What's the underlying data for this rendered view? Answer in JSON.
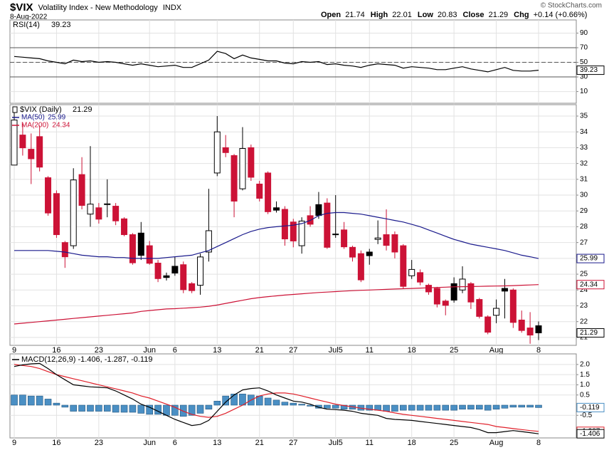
{
  "header": {
    "symbol": "$VIX",
    "name": "Volatility Index - New Methodology",
    "exchange": "INDX",
    "date": "8-Aug-2022",
    "open_label": "Open",
    "high_label": "High",
    "low_label": "Low",
    "close_label": "Close",
    "chg_label": "Chg",
    "chg": "+0.14 (+0.66%)",
    "copyright": "© StockCharts.com"
  },
  "chart_data": [
    {
      "type": "line",
      "label": "RSI(14)",
      "ylim": [
        -6,
        108
      ],
      "yticks": [
        90,
        70,
        50,
        30,
        10
      ],
      "levels": [
        {
          "value": 70,
          "dash": false
        },
        {
          "value": 50,
          "dash": true
        },
        {
          "value": 30,
          "dash": false
        }
      ],
      "series": [
        {
          "name": "RSI(14)",
          "color": "#000000",
          "values": [
            58,
            57,
            56,
            55,
            52,
            50,
            48,
            53,
            51,
            52,
            50,
            51,
            50,
            48,
            46,
            48,
            46,
            44,
            45,
            46,
            43,
            43,
            48,
            53,
            65,
            62,
            55,
            60,
            56,
            54,
            52,
            52,
            49,
            48,
            51,
            50,
            51,
            47,
            48,
            46,
            45,
            43,
            46,
            48,
            47,
            46,
            42,
            44,
            43,
            42,
            40,
            40,
            42,
            44,
            41,
            39,
            37,
            40,
            43,
            39,
            38,
            38,
            39.23
          ]
        }
      ]
    },
    {
      "type": "candlestick",
      "label": "$VIX (Daily)",
      "ylim": [
        20.5,
        35.72
      ],
      "yticks": [
        21,
        22,
        23,
        24,
        25,
        26,
        27,
        28,
        29,
        30,
        31,
        32,
        33,
        34,
        35
      ],
      "grid": true,
      "colors": {
        "up": "#000000",
        "down": "#cc1236"
      },
      "categories": [
        "9",
        null,
        null,
        null,
        null,
        "16",
        null,
        null,
        null,
        null,
        "23",
        null,
        null,
        null,
        null,
        null,
        "Jun",
        null,
        null,
        "6",
        null,
        null,
        null,
        null,
        "13",
        null,
        null,
        null,
        null,
        "21",
        null,
        null,
        null,
        "27",
        null,
        null,
        null,
        null,
        "Jul5",
        null,
        null,
        null,
        "11",
        null,
        null,
        null,
        null,
        "18",
        null,
        null,
        null,
        null,
        "25",
        null,
        null,
        null,
        null,
        "Aug",
        null,
        null,
        null,
        null,
        "8"
      ],
      "open": [
        31.9,
        33.8,
        32.9,
        33.7,
        31.1,
        30.1,
        27.0,
        26.8,
        31.3,
        28.8,
        29.2,
        29.4,
        29.3,
        28.5,
        27.5,
        27.6,
        26.8,
        25.7,
        24.9,
        25.5,
        25.6,
        24.4,
        24.3,
        26.4,
        31.4,
        33.0,
        32.5,
        30.4,
        33.0,
        30.7,
        31.4,
        29.2,
        29.1,
        28.3,
        26.8,
        28.7,
        29.4,
        29.5,
        27.5,
        27.8,
        26.7,
        26.3,
        26.4,
        27.2,
        27.5,
        27.5,
        26.8,
        24.9,
        25.1,
        24.3,
        24.1,
        23.3,
        24.4,
        24.0,
        24.4,
        23.4,
        22.3,
        22.4,
        24.1,
        24.0,
        22.1,
        21.6,
        21.74
      ],
      "high": [
        35.6,
        34.5,
        33.9,
        34.4,
        31.2,
        30.3,
        27.1,
        31.7,
        32.4,
        33.1,
        29.5,
        31.0,
        29.5,
        28.6,
        27.6,
        28.3,
        27.1,
        25.9,
        25.1,
        26.1,
        25.8,
        24.5,
        26.3,
        30.4,
        35.0,
        33.8,
        32.6,
        34.3,
        33.2,
        30.9,
        31.5,
        29.6,
        29.3,
        28.5,
        28.6,
        29.3,
        30.2,
        29.8,
        30.0,
        28.3,
        26.8,
        26.5,
        26.6,
        28.4,
        29.1,
        27.7,
        26.9,
        25.9,
        25.3,
        24.4,
        24.2,
        23.4,
        24.8,
        25.5,
        24.5,
        23.5,
        22.4,
        23.4,
        24.7,
        24.1,
        22.7,
        22.6,
        22.01
      ],
      "low": [
        31.9,
        32.5,
        30.7,
        31.5,
        28.7,
        27.3,
        25.4,
        26.6,
        29.1,
        28.0,
        28.2,
        28.6,
        28.1,
        27.4,
        25.6,
        25.9,
        25.6,
        24.5,
        24.6,
        24.9,
        23.8,
        23.8,
        23.7,
        25.8,
        31.2,
        32.4,
        28.6,
        30.3,
        30.9,
        29.6,
        28.8,
        28.9,
        26.8,
        26.7,
        26.3,
        28.0,
        28.5,
        26.6,
        27.3,
        26.6,
        25.8,
        24.5,
        25.6,
        26.9,
        26.5,
        26.0,
        24.1,
        24.7,
        24.3,
        23.7,
        22.9,
        22.4,
        23.2,
        23.8,
        22.8,
        22.2,
        21.2,
        21.9,
        22.2,
        21.6,
        21.3,
        20.6,
        20.83
      ],
      "close": [
        34.75,
        32.99,
        32.3,
        31.77,
        28.87,
        27.5,
        26.1,
        30.96,
        29.35,
        29.43,
        28.48,
        29.45,
        28.37,
        27.5,
        25.72,
        26.19,
        25.69,
        24.72,
        24.79,
        25.07,
        24.02,
        23.96,
        26.09,
        27.75,
        34.0,
        32.69,
        29.62,
        32.95,
        31.13,
        29.8,
        28.95,
        29.05,
        27.23,
        27.1,
        28.36,
        28.16,
        28.71,
        26.7,
        27.54,
        26.73,
        26.08,
        24.64,
        26.17,
        27.29,
        26.82,
        26.4,
        24.23,
        25.3,
        24.5,
        23.88,
        23.11,
        23.03,
        23.36,
        24.69,
        23.24,
        22.33,
        21.33,
        22.84,
        23.93,
        21.95,
        21.44,
        21.15,
        21.29
      ],
      "series": [
        {
          "name": "MA(50)",
          "color": "#1a1a8c",
          "values": [
            26.5,
            26.5,
            26.5,
            26.5,
            26.5,
            26.45,
            26.4,
            26.3,
            26.2,
            26.15,
            26.1,
            26.1,
            26.05,
            26.05,
            26.0,
            26.0,
            26.0,
            26.0,
            26.05,
            26.1,
            26.15,
            26.2,
            26.35,
            26.5,
            26.75,
            27.0,
            27.25,
            27.5,
            27.7,
            27.85,
            27.95,
            28.0,
            28.05,
            28.1,
            28.2,
            28.4,
            28.7,
            28.85,
            28.9,
            28.9,
            28.85,
            28.8,
            28.7,
            28.6,
            28.5,
            28.4,
            28.3,
            28.15,
            28.0,
            27.8,
            27.6,
            27.4,
            27.2,
            27.05,
            26.9,
            26.8,
            26.7,
            26.6,
            26.5,
            26.35,
            26.2,
            26.1,
            25.99
          ]
        },
        {
          "name": "MA(200)",
          "color": "#cc1236",
          "values": [
            21.85,
            21.9,
            21.95,
            22.0,
            22.05,
            22.1,
            22.15,
            22.2,
            22.25,
            22.3,
            22.35,
            22.4,
            22.45,
            22.5,
            22.55,
            22.65,
            22.7,
            22.75,
            22.8,
            22.82,
            22.85,
            22.88,
            22.92,
            22.97,
            23.05,
            23.15,
            23.25,
            23.35,
            23.45,
            23.52,
            23.58,
            23.63,
            23.68,
            23.72,
            23.76,
            23.8,
            23.84,
            23.87,
            23.9,
            23.93,
            23.96,
            23.98,
            24.0,
            24.02,
            24.04,
            24.06,
            24.08,
            24.1,
            24.12,
            24.14,
            24.16,
            24.18,
            24.2,
            24.21,
            24.22,
            24.23,
            24.24,
            24.25,
            24.26,
            24.28,
            24.3,
            24.32,
            24.34
          ]
        }
      ]
    },
    {
      "type": "combo",
      "label": "MACD(12,26,9) -1.406, -1.287, -0.119",
      "ylim": [
        -1.61,
        2.52
      ],
      "yticks": [
        {
          "value": 2,
          "label": "2.0"
        },
        {
          "value": 1.5,
          "label": "1.5"
        },
        {
          "value": 1,
          "label": "1.0"
        },
        {
          "value": 0.5,
          "label": "0.5"
        },
        {
          "value": -0.5,
          "label": "-0.5"
        }
      ],
      "categories": [
        "9",
        null,
        null,
        null,
        null,
        "16",
        null,
        null,
        null,
        null,
        "23",
        null,
        null,
        null,
        null,
        null,
        "Jun",
        null,
        null,
        "6",
        null,
        null,
        null,
        null,
        "13",
        null,
        null,
        null,
        null,
        "21",
        null,
        null,
        null,
        "27",
        null,
        null,
        null,
        null,
        "Jul5",
        null,
        null,
        null,
        "11",
        null,
        null,
        null,
        null,
        "18",
        null,
        null,
        null,
        null,
        "25",
        null,
        null,
        null,
        null,
        "Aug",
        null,
        null,
        null,
        null,
        "8"
      ],
      "series": [
        {
          "name": "Histogram",
          "kind": "bar",
          "color": "#4a8fc4",
          "values": [
            0.5,
            0.5,
            0.45,
            0.45,
            0.3,
            0.1,
            -0.1,
            -0.3,
            -0.3,
            -0.3,
            -0.3,
            -0.3,
            -0.35,
            -0.35,
            -0.35,
            -0.4,
            -0.45,
            -0.45,
            -0.5,
            -0.5,
            -0.55,
            -0.5,
            -0.4,
            -0.2,
            0.2,
            0.45,
            0.55,
            0.55,
            0.5,
            0.45,
            0.35,
            0.25,
            0.15,
            0.1,
            0.05,
            -0.05,
            -0.15,
            -0.15,
            -0.15,
            -0.2,
            -0.2,
            -0.25,
            -0.25,
            -0.25,
            -0.3,
            -0.3,
            -0.25,
            -0.25,
            -0.25,
            -0.25,
            -0.25,
            -0.25,
            -0.25,
            -0.2,
            -0.2,
            -0.2,
            -0.25,
            -0.2,
            -0.15,
            -0.1,
            -0.1,
            -0.1,
            -0.119
          ]
        },
        {
          "name": "Signal",
          "kind": "line",
          "color": "#e0202a",
          "values": [
            2.0,
            1.95,
            1.9,
            1.8,
            1.65,
            1.5,
            1.4,
            1.3,
            1.2,
            1.1,
            1.0,
            0.9,
            0.8,
            0.7,
            0.6,
            0.45,
            0.35,
            0.2,
            0.05,
            -0.1,
            -0.3,
            -0.45,
            -0.55,
            -0.6,
            -0.55,
            -0.4,
            -0.2,
            0.0,
            0.25,
            0.45,
            0.55,
            0.6,
            0.6,
            0.55,
            0.45,
            0.35,
            0.25,
            0.15,
            0.05,
            -0.02,
            -0.08,
            -0.15,
            -0.2,
            -0.25,
            -0.3,
            -0.38,
            -0.45,
            -0.5,
            -0.55,
            -0.6,
            -0.65,
            -0.7,
            -0.75,
            -0.8,
            -0.85,
            -0.9,
            -0.95,
            -1.05,
            -1.1,
            -1.15,
            -1.2,
            -1.25,
            -1.287
          ]
        },
        {
          "name": "MACD",
          "kind": "line",
          "color": "#000000",
          "values": [
            1.9,
            1.98,
            2.03,
            2.05,
            1.8,
            1.5,
            1.25,
            1.0,
            0.95,
            0.9,
            0.88,
            0.85,
            0.7,
            0.5,
            0.3,
            0.05,
            -0.1,
            -0.3,
            -0.5,
            -0.7,
            -0.85,
            -1.0,
            -0.95,
            -0.75,
            -0.3,
            0.15,
            0.5,
            0.75,
            0.82,
            0.85,
            0.7,
            0.5,
            0.35,
            0.2,
            0.15,
            0.05,
            -0.1,
            -0.2,
            -0.22,
            -0.25,
            -0.3,
            -0.4,
            -0.45,
            -0.5,
            -0.65,
            -0.7,
            -0.72,
            -0.75,
            -0.8,
            -0.85,
            -0.9,
            -0.95,
            -1.0,
            -1.05,
            -1.1,
            -1.2,
            -1.35,
            -1.35,
            -1.3,
            -1.25,
            -1.3,
            -1.35,
            -1.406
          ]
        }
      ]
    }
  ]
}
